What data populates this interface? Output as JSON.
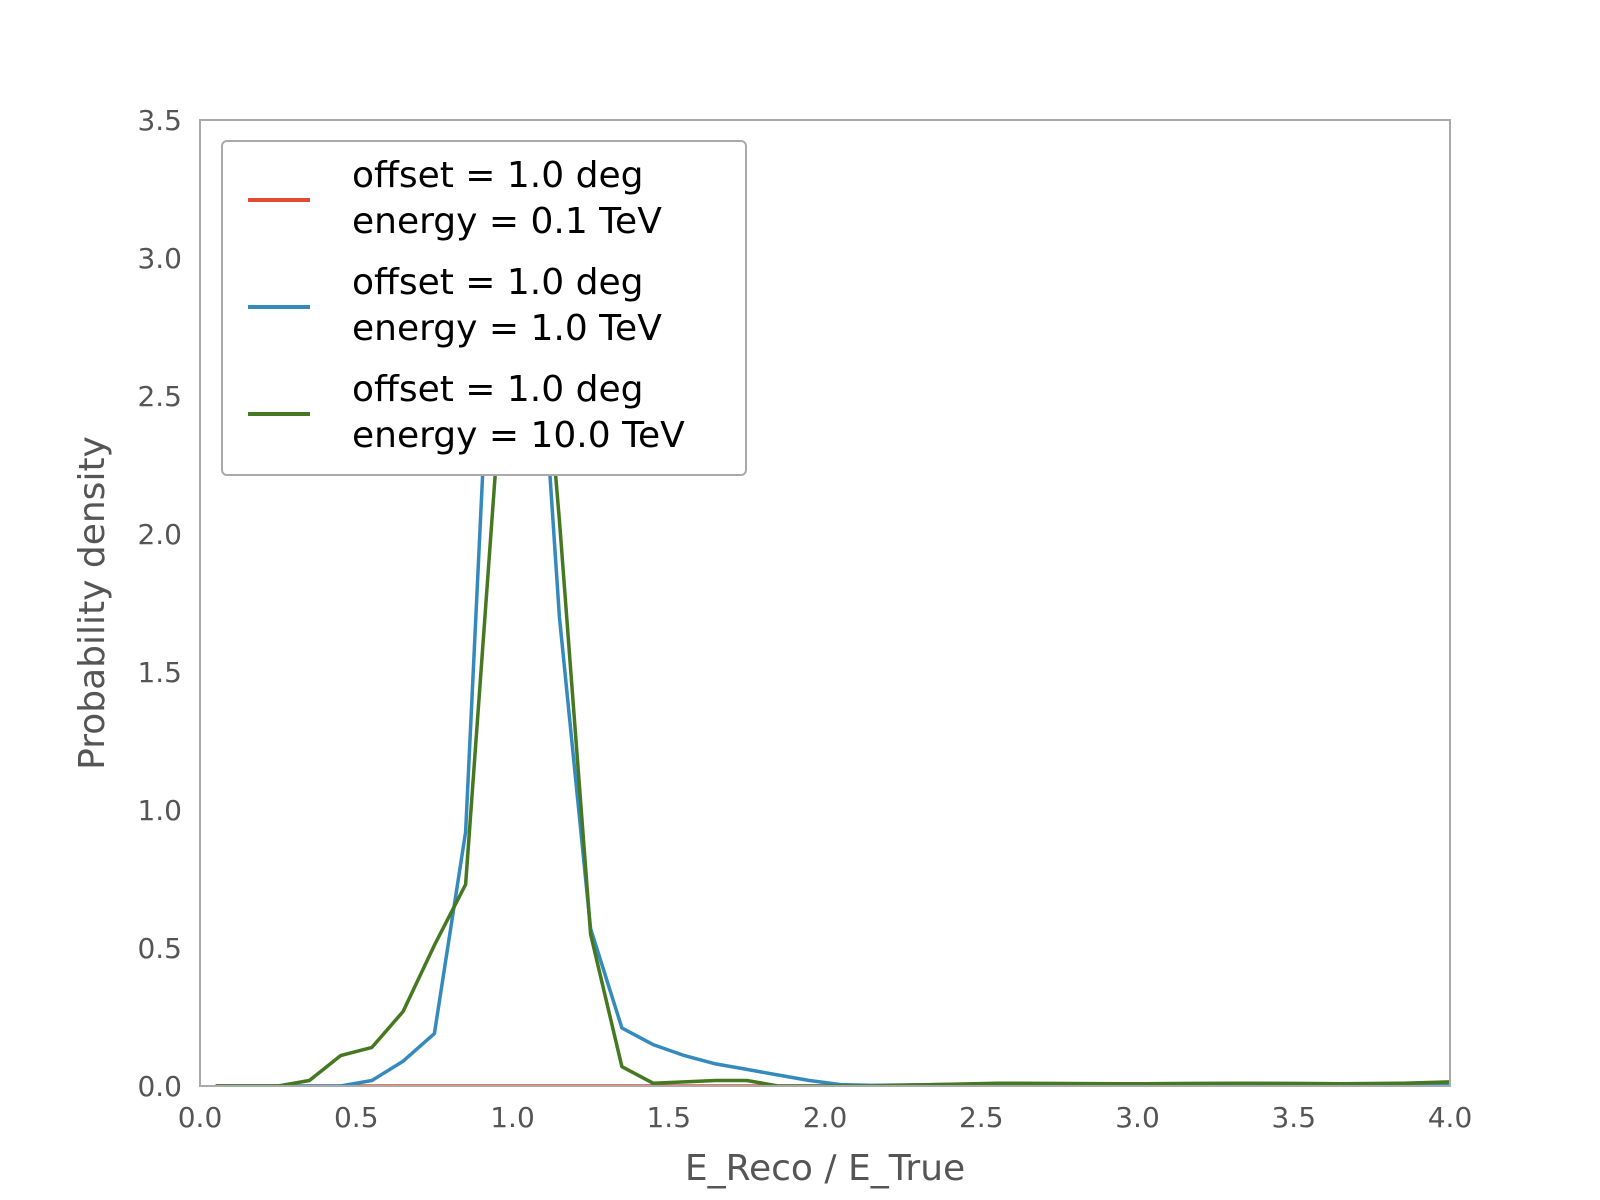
{
  "chart_data": {
    "type": "line",
    "title": "",
    "xlabel": "E_Reco / E_True",
    "ylabel": "Probability density",
    "xlim": [
      0.0,
      4.0
    ],
    "ylim": [
      0.0,
      3.5
    ],
    "xticks": [
      "0.0",
      "0.5",
      "1.0",
      "1.5",
      "2.0",
      "2.5",
      "3.0",
      "3.5",
      "4.0"
    ],
    "yticks": [
      "0.0",
      "0.5",
      "1.0",
      "1.5",
      "2.0",
      "2.5",
      "3.0",
      "3.5"
    ],
    "grid": false,
    "legend_position": "top-left",
    "series": [
      {
        "name_lines": [
          "offset = 1.0 deg",
          "energy = 0.1 TeV"
        ],
        "color": "#E24A33",
        "x": [
          0.05,
          0.15,
          0.25,
          0.35,
          0.45,
          0.55,
          0.65,
          0.75,
          0.85,
          0.95,
          1.05,
          1.15,
          1.25,
          1.35,
          1.45,
          1.55,
          1.65,
          1.75,
          1.85,
          1.95,
          2.05,
          2.15,
          2.55,
          2.95,
          3.35,
          3.65,
          4.0
        ],
        "y": [
          0,
          0,
          0,
          0,
          0,
          0,
          0,
          0,
          0,
          0,
          0,
          0,
          0,
          0,
          0,
          0,
          0,
          0,
          0,
          0,
          0,
          0,
          0,
          0,
          0,
          0,
          0
        ]
      },
      {
        "name_lines": [
          "offset = 1.0 deg",
          "energy = 1.0 TeV"
        ],
        "color": "#348ABD",
        "x": [
          0.05,
          0.15,
          0.25,
          0.35,
          0.45,
          0.55,
          0.65,
          0.75,
          0.85,
          0.95,
          1.05,
          1.15,
          1.25,
          1.35,
          1.45,
          1.55,
          1.65,
          1.75,
          1.85,
          1.95,
          2.05,
          2.15,
          2.35,
          2.55,
          2.95,
          3.35,
          3.65,
          4.0
        ],
        "y": [
          0,
          0,
          0,
          0,
          0,
          0.02,
          0.09,
          0.19,
          0.92,
          3.3,
          3.4,
          1.7,
          0.57,
          0.21,
          0.15,
          0.11,
          0.08,
          0.06,
          0.04,
          0.02,
          0.005,
          0.002,
          0.005,
          0.008,
          0.008,
          0.01,
          0.008,
          0.005
        ]
      },
      {
        "name_lines": [
          "offset = 1.0 deg",
          "energy = 10.0 TeV"
        ],
        "color": "#467821",
        "x": [
          0.05,
          0.15,
          0.25,
          0.35,
          0.45,
          0.55,
          0.65,
          0.75,
          0.85,
          0.95,
          1.05,
          1.15,
          1.25,
          1.35,
          1.45,
          1.55,
          1.65,
          1.75,
          1.85,
          1.95,
          2.05,
          2.15,
          2.35,
          2.55,
          2.95,
          3.35,
          3.65,
          3.85,
          4.0
        ],
        "y": [
          0,
          0,
          0,
          0.02,
          0.11,
          0.14,
          0.27,
          0.51,
          0.73,
          2.3,
          3.4,
          2.05,
          0.55,
          0.07,
          0.01,
          0.015,
          0.02,
          0.02,
          0.0,
          0.0,
          0.0,
          0.0,
          0.005,
          0.01,
          0.008,
          0.01,
          0.008,
          0.01,
          0.015
        ]
      }
    ]
  }
}
